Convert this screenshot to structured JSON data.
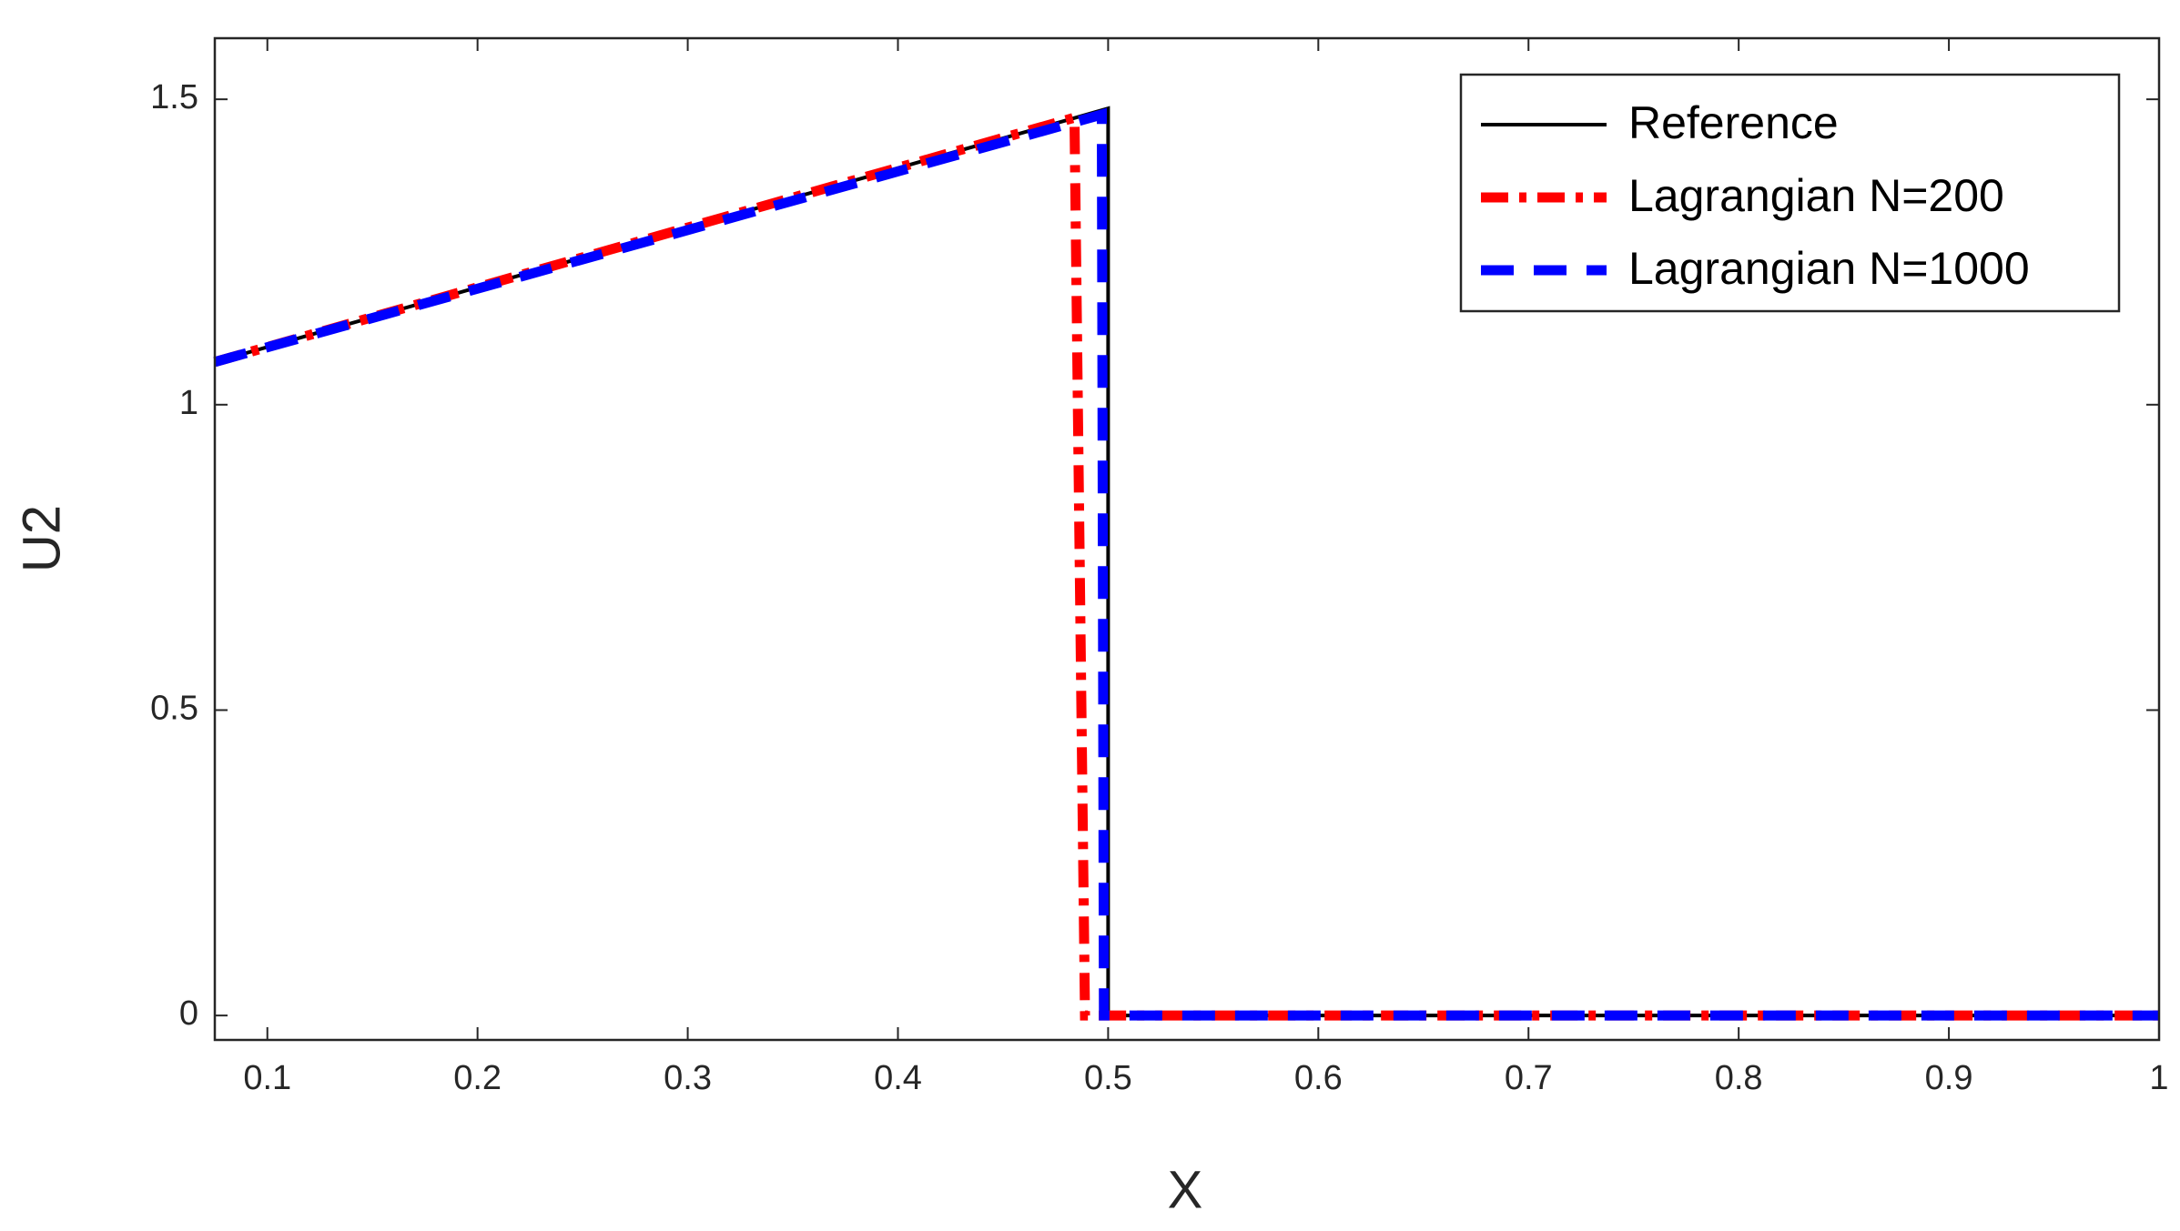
{
  "chart_data": {
    "type": "line",
    "xlabel": "X",
    "ylabel": "U2",
    "xlim": [
      0.075,
      1
    ],
    "ylim": [
      -0.04,
      1.6
    ],
    "xticks": [
      0.1,
      0.2,
      0.3,
      0.4,
      0.5,
      0.6,
      0.7,
      0.8,
      0.9,
      1
    ],
    "yticks": [
      0,
      0.5,
      1,
      1.5
    ],
    "legend": "northeast",
    "series": [
      {
        "name": "Reference",
        "color": "#000000",
        "style": "solid",
        "x": [
          0.075,
          0.5,
          0.5,
          1
        ],
        "values": [
          1.07,
          1.485,
          0,
          0
        ]
      },
      {
        "name": "Lagrangian N=200",
        "color": "#ff0000",
        "style": "dashdot",
        "x": [
          0.075,
          0.484,
          0.489,
          1
        ],
        "values": [
          1.07,
          1.47,
          0,
          0
        ]
      },
      {
        "name": "Lagrangian N=1000",
        "color": "#0000ff",
        "style": "dashed",
        "x": [
          0.075,
          0.497,
          0.498,
          1
        ],
        "values": [
          1.07,
          1.475,
          0,
          0
        ]
      }
    ]
  }
}
